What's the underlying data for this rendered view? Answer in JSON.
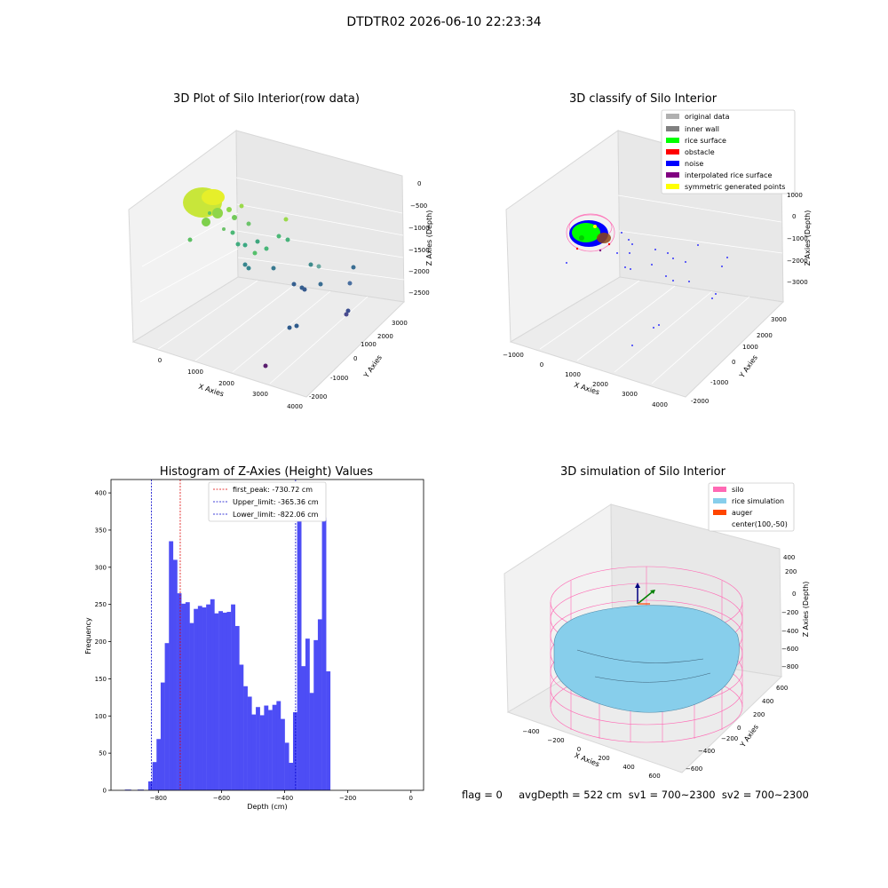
{
  "figure": {
    "suptitle": "DTDTR02 2026-06-10 22:23:34",
    "status_text": "flag = 0     avgDepth = 522 cm  sv1 = 700~2300  sv2 = 700~2300"
  },
  "colors": {
    "hist_bar": "#4d4df5",
    "first_peak_line": "#dd0000",
    "limit_line": "#0000cc",
    "silo": "#ff69b4",
    "rice": "#87ceeb",
    "auger": "#ff4500"
  },
  "panels": {
    "raw": {
      "title": "3D Plot of Silo Interior(row data)",
      "xlabel": "X Axies",
      "ylabel": "Y Axies",
      "zlabel": "Z Axies (Depth)",
      "xticks": [
        "0",
        "1000",
        "2000",
        "3000",
        "4000"
      ],
      "yticks": [
        "-2000",
        "-1000",
        "0",
        "1000",
        "2000",
        "3000"
      ],
      "zticks": [
        "0",
        "−500",
        "−1000",
        "−1500",
        "−2000",
        "−2500"
      ]
    },
    "classify": {
      "title": "3D classify of Silo Interior",
      "xlabel": "X Axies",
      "ylabel": "Y Axies",
      "zlabel": "Z Axies (Depth)",
      "xticks": [
        "−1000",
        "0",
        "1000",
        "2000",
        "3000",
        "4000"
      ],
      "yticks": [
        "-2000",
        "-1000",
        "0",
        "1000",
        "2000",
        "3000"
      ],
      "zticks": [
        "1000",
        "0",
        "−1000",
        "−2000",
        "−3000"
      ],
      "legend": [
        {
          "label": "original data",
          "color": "#b0b0b0"
        },
        {
          "label": "inner wall",
          "color": "#808080"
        },
        {
          "label": "rice surface",
          "color": "#00ff00"
        },
        {
          "label": "obstacle",
          "color": "#ff0000"
        },
        {
          "label": "noise",
          "color": "#0000ff"
        },
        {
          "label": "interpolated rice surface",
          "color": "#800080"
        },
        {
          "label": "symmetric generated points",
          "color": "#ffff00"
        }
      ]
    },
    "simulation": {
      "title": "3D simulation of Silo Interior",
      "xlabel": "X Axies",
      "ylabel": "Y Axies",
      "zlabel": "Z Axies (Depth)",
      "xticks": [
        "−400",
        "−200",
        "0",
        "200",
        "400",
        "600"
      ],
      "yticks": [
        "−600",
        "−400",
        "−200",
        "0",
        "200",
        "400",
        "600"
      ],
      "zticks": [
        "400",
        "200",
        "0",
        "−200",
        "−400",
        "−600",
        "−800"
      ],
      "legend": [
        {
          "label": "silo",
          "color": "#ff69b4"
        },
        {
          "label": "rice simulation",
          "color": "#87ceeb"
        },
        {
          "label": "auger",
          "color": "#ff4500"
        },
        {
          "label": "center(100,-50)",
          "color": ""
        }
      ]
    }
  },
  "chart_data": [
    {
      "type": "scatter",
      "title": "3D Plot of Silo Interior(row data)",
      "xlabel": "X Axies",
      "ylabel": "Y Axies",
      "zlabel": "Z Axies (Depth)",
      "xlim": [
        -500,
        4000
      ],
      "zlim": [
        -2700,
        100
      ]
    },
    {
      "type": "scatter",
      "title": "3D classify of Silo Interior",
      "xlabel": "X Axies",
      "ylabel": "Y Axies",
      "zlabel": "Z Axies (Depth)",
      "xlim": [
        -1200,
        4200
      ],
      "zlim": [
        -3500,
        1000
      ],
      "legend_position": "top-right"
    },
    {
      "type": "bar",
      "title": "Histogram of Z-Axies (Height) Values",
      "xlabel": "Depth (cm)",
      "ylabel": "Frequency",
      "xlim": [
        -950,
        40
      ],
      "ylim": [
        0,
        418
      ],
      "xticks": [
        -800,
        -600,
        -400,
        -200,
        0
      ],
      "yticks": [
        0,
        50,
        100,
        150,
        200,
        250,
        300,
        350,
        400
      ],
      "bin_start": -832,
      "bin_width": 13.1,
      "values": [
        12,
        38,
        69,
        145,
        198,
        335,
        310,
        265,
        251,
        253,
        225,
        244,
        248,
        246,
        250,
        257,
        238,
        241,
        239,
        240,
        250,
        221,
        169,
        140,
        126,
        102,
        112,
        101,
        114,
        108,
        115,
        120,
        96,
        64,
        37,
        105,
        398,
        167,
        204,
        131,
        202,
        230,
        367,
        160
      ],
      "low_bins": [
        {
          "x0": -906,
          "x1": -886,
          "value": 1
        },
        {
          "x0": -866,
          "x1": -846,
          "value": 1
        }
      ],
      "vlines": [
        {
          "x": -730.72,
          "label": "first_peak: -730.72 cm",
          "color": "#dd0000"
        },
        {
          "x": -365.36,
          "label": "Upper_limit: -365.36 cm",
          "color": "#0000cc"
        },
        {
          "x": -822.06,
          "label": "Lower_limit: -822.06 cm",
          "color": "#0000cc"
        }
      ],
      "legend_position": "upper-center"
    },
    {
      "type": "surface",
      "title": "3D simulation of Silo Interior",
      "xlabel": "X Axies",
      "ylabel": "Y Axies",
      "zlabel": "Z Axies (Depth)",
      "xlim": [
        -500,
        700
      ],
      "ylim": [
        -700,
        700
      ],
      "zlim": [
        -900,
        450
      ],
      "center": [
        100,
        -50
      ],
      "legend_position": "top-right"
    }
  ]
}
